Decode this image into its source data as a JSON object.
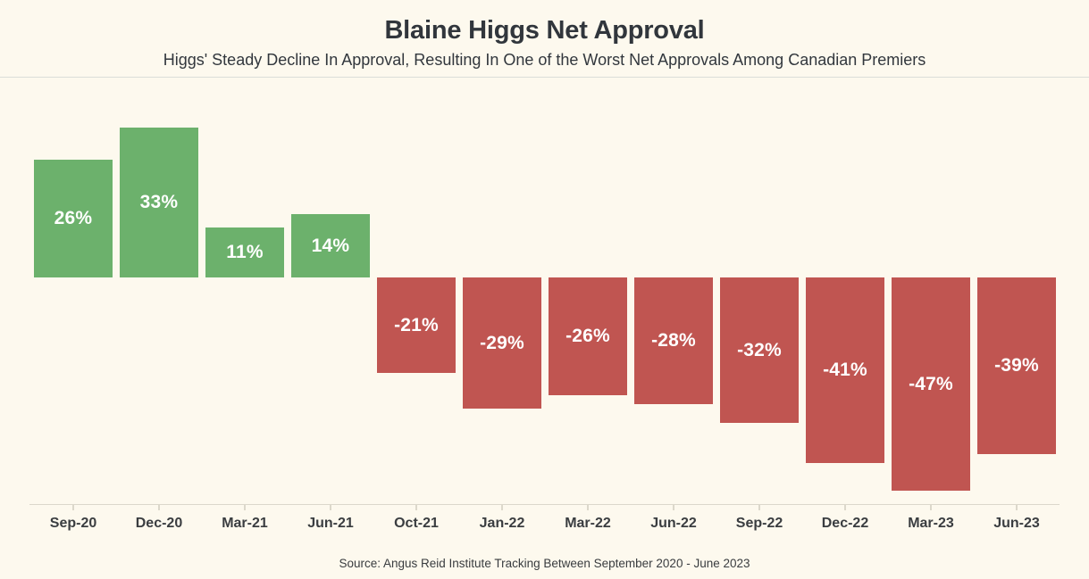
{
  "page": {
    "background": "#FDF9EE"
  },
  "header": {
    "title": "Blaine Higgs Net Approval",
    "subtitle": "Higgs' Steady Decline In Approval, Resulting In One of the Worst Net Approvals Among Canadian Premiers"
  },
  "footer": {
    "source": "Source: Angus Reid Institute Tracking Between September 2020 - June 2023"
  },
  "chart_data": {
    "type": "bar",
    "title": "Blaine Higgs Net Approval",
    "subtitle": "Higgs' Steady Decline In Approval, Resulting In One of the Worst Net Approvals Among Canadian Premiers",
    "categories": [
      "Sep-20",
      "Dec-20",
      "Mar-21",
      "Jun-21",
      "Oct-21",
      "Jan-22",
      "Mar-22",
      "Jun-22",
      "Sep-22",
      "Dec-22",
      "Mar-23",
      "Jun-23"
    ],
    "values": [
      26,
      33,
      11,
      14,
      -21,
      -29,
      -26,
      -28,
      -32,
      -41,
      -47,
      -39
    ],
    "bar_labels": [
      "26%",
      "33%",
      "11%",
      "14%",
      "-21%",
      "-29%",
      "-26%",
      "-28%",
      "-32%",
      "-41%",
      "-47%",
      "-39%"
    ],
    "xlabel": "",
    "ylabel": "",
    "ylim": [
      -50,
      40
    ],
    "grid": false,
    "legend": false,
    "value_label_position": "center",
    "bar_color_positive": "#6CB16C",
    "bar_color_negative": "#C05551",
    "bar_label_color": "#FFFFFF",
    "axis_color": "#DCD8CB"
  }
}
